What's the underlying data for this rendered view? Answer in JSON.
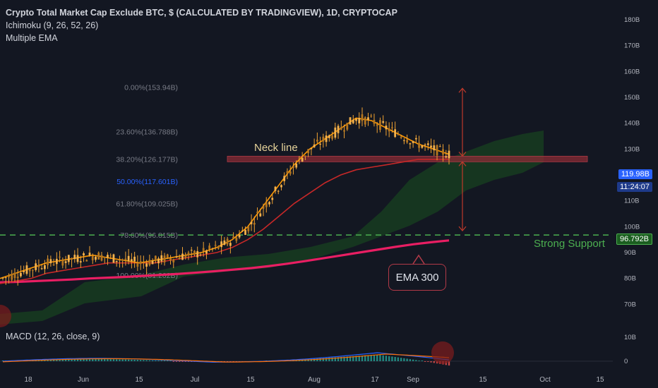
{
  "legend": {
    "title": "Crypto Total Market Cap Exclude BTC, $ (CALCULATED BY TRADINGVIEW), 1D, CRYPTOCAP",
    "line2": "Ichimoku (9, 26, 52, 26)",
    "line3": "Multiple EMA"
  },
  "macd_label": "MACD (12, 26, close, 9)",
  "annotations": {
    "neck_line": "Neck line",
    "strong_support": "Strong Support",
    "ema_callout": "EMA 300"
  },
  "price_tags": {
    "last_price": "119.98B",
    "countdown": "11:24:07",
    "support": "96.792B"
  },
  "colors": {
    "background": "#131722",
    "candle": "#f0a232",
    "ema_fast": "#ff9800",
    "ema_mid": "#c62828",
    "ema_300": "#e91e63",
    "cloud": "#1b5e20",
    "neck_line": "#8b2c35",
    "support_line": "#4caf50",
    "fib": "#787b86",
    "fib_50": "#2962ff"
  },
  "chart_data": {
    "type": "line",
    "title": "Crypto Total Market Cap Exclude BTC, $ (CALCULATED BY TRADINGVIEW), 1D, CRYPTOCAP",
    "y_unit": "B",
    "ylim": [
      65,
      185
    ],
    "y_ticks": [
      "180B",
      "170B",
      "160B",
      "150B",
      "140B",
      "130B",
      "120B",
      "110B",
      "100B",
      "90B",
      "80B",
      "70B"
    ],
    "y_tick_values": [
      180,
      170,
      160,
      150,
      140,
      130,
      120,
      110,
      100,
      90,
      80,
      70
    ],
    "x_ticks": [
      "18",
      "Jun",
      "15",
      "Jul",
      "15",
      "Aug",
      "17",
      "Sep",
      "15",
      "Oct",
      "15"
    ],
    "fib_levels": [
      {
        "label": "0.00%(153.94B)",
        "value": 153.94
      },
      {
        "label": "23.60%(136.788B)",
        "value": 136.788
      },
      {
        "label": "38.20%(126.177B)",
        "value": 126.177
      },
      {
        "label": "50.00%(117.601B)",
        "value": 117.601
      },
      {
        "label": "61.80%(109.025B)",
        "value": 109.025
      },
      {
        "label": "78.60%(96.815B)",
        "value": 96.815
      },
      {
        "label": "100.00%(81.262B)",
        "value": 81.262
      }
    ],
    "neck_line_value": 126.177,
    "support_value": 96.792,
    "series": [
      {
        "name": "Multiple EMA",
        "values": [
          80,
          82,
          84,
          86,
          87,
          88,
          89,
          88,
          87,
          86,
          87,
          88,
          89,
          90,
          92,
          95,
          100,
          108,
          116,
          124,
          130,
          134,
          138,
          142,
          141,
          138,
          135,
          132,
          130,
          128
        ]
      },
      {
        "name": "Multiple EMA",
        "values": [
          78,
          79,
          80,
          82,
          83,
          84,
          85,
          86,
          86,
          86,
          86,
          87,
          88,
          89,
          90,
          92,
          95,
          99,
          104,
          109,
          113,
          117,
          120,
          122,
          123,
          124,
          125,
          126,
          126,
          126
        ]
      },
      {
        "name": "EMA 300",
        "values": [
          78.5,
          78.7,
          79,
          79.3,
          79.6,
          80,
          80.3,
          80.6,
          81,
          81.4,
          81.8,
          82.3,
          82.8,
          83.4,
          84,
          84.8,
          85.7,
          86.7,
          87.8,
          88.9,
          90,
          91.1,
          92.2,
          93.2,
          94,
          94.7
        ]
      }
    ],
    "macd": {
      "label": "MACD (12, 26, close, 9)",
      "y_ticks": [
        "10B",
        "0"
      ],
      "y_tick_values": [
        10,
        0
      ]
    }
  }
}
